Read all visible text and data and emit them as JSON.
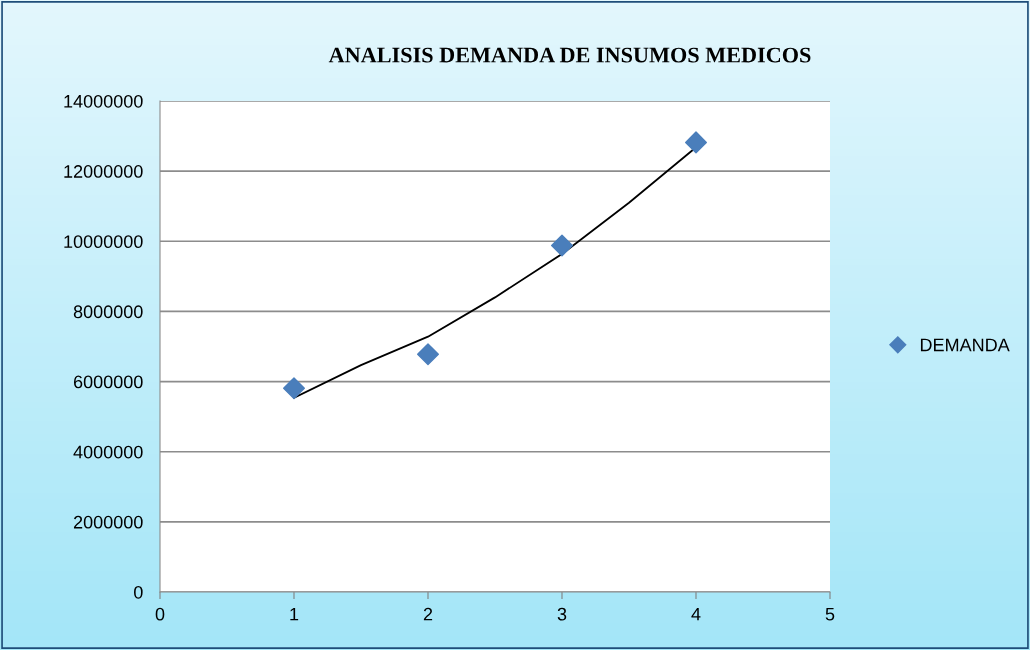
{
  "chart_data": {
    "type": "scatter",
    "title": "ANALISIS DEMANDA DE INSUMOS MEDICOS",
    "series": [
      {
        "name": "DEMANDA",
        "color": "#4a7ebb",
        "marker": "diamond",
        "x": [
          1,
          2,
          3,
          4
        ],
        "values": [
          5810000,
          6780000,
          9880000,
          12820000
        ]
      },
      {
        "type": "line",
        "color": "#000000",
        "marker": "none",
        "line_style": "solid",
        "x": [
          1,
          1.5,
          2,
          2.5,
          3,
          3.5,
          4
        ],
        "values": [
          5540000,
          6470000,
          7280000,
          8400000,
          9640000,
          11100000,
          12680000
        ]
      }
    ],
    "xlim": [
      0,
      5
    ],
    "xticks": [
      0,
      1,
      2,
      3,
      4,
      5
    ],
    "ylim": [
      0,
      14000000
    ],
    "yticks": [
      0,
      2000000,
      4000000,
      6000000,
      8000000,
      10000000,
      12000000,
      14000000
    ],
    "grid": "y",
    "legend": "right"
  }
}
